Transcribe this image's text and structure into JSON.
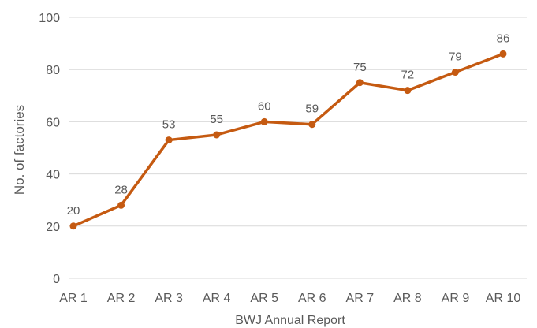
{
  "chart_data": {
    "type": "line",
    "categories": [
      "AR 1",
      "AR 2",
      "AR 3",
      "AR 4",
      "AR 5",
      "AR 6",
      "AR 7",
      "AR 8",
      "AR 9",
      "AR 10"
    ],
    "values": [
      20,
      28,
      53,
      55,
      60,
      59,
      75,
      72,
      79,
      86
    ],
    "data_labels": [
      "20",
      "28",
      "53",
      "55",
      "60",
      "59",
      "75",
      "72",
      "79",
      "86"
    ],
    "xlabel": "BWJ Annual Report",
    "ylabel": "No. of factories",
    "ylim": [
      0,
      100
    ],
    "yticks": [
      0,
      20,
      40,
      60,
      80,
      100
    ],
    "ytick_labels": [
      "0",
      "20",
      "40",
      "60",
      "80",
      "100"
    ],
    "grid": "horizontal",
    "legend": "none",
    "colors": {
      "series": "#c55a11",
      "grid": "#d9d9d9",
      "text": "#595959"
    }
  }
}
